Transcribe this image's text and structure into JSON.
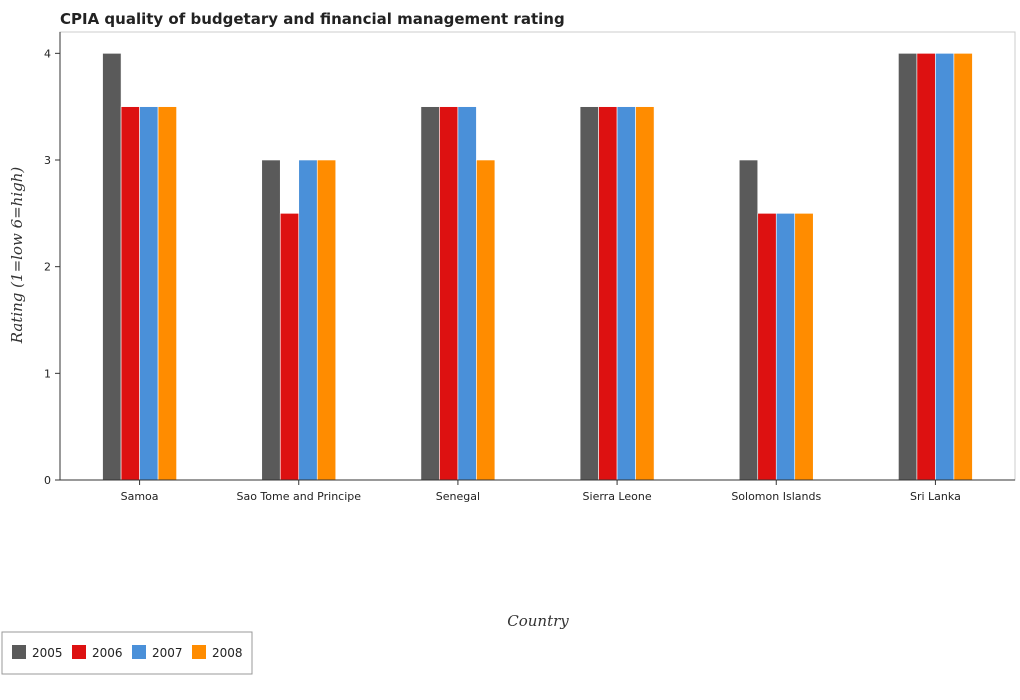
{
  "chart_data": {
    "type": "bar",
    "title": "CPIA quality of budgetary and financial management rating",
    "xlabel": "Country",
    "ylabel": "Rating (1=low 6=high)",
    "ylim": [
      0,
      4.2
    ],
    "yticks": [
      0,
      1,
      2,
      3,
      4
    ],
    "categories": [
      "Samoa",
      "Sao Tome and Principe",
      "Senegal",
      "Sierra Leone",
      "Solomon Islands",
      "Sri Lanka"
    ],
    "series": [
      {
        "name": "2005",
        "color": "#5a5a5a",
        "values": [
          4.0,
          3.0,
          3.5,
          3.5,
          3.0,
          4.0
        ]
      },
      {
        "name": "2006",
        "color": "#dd1111",
        "values": [
          3.5,
          2.5,
          3.5,
          3.5,
          2.5,
          4.0
        ]
      },
      {
        "name": "2007",
        "color": "#4a90d9",
        "values": [
          3.5,
          3.0,
          3.5,
          3.5,
          2.5,
          4.0
        ]
      },
      {
        "name": "2008",
        "color": "#ff8c00",
        "values": [
          3.5,
          3.0,
          3.0,
          3.5,
          2.5,
          4.0
        ]
      }
    ],
    "grid": false,
    "legend_position": "bottom-left"
  }
}
